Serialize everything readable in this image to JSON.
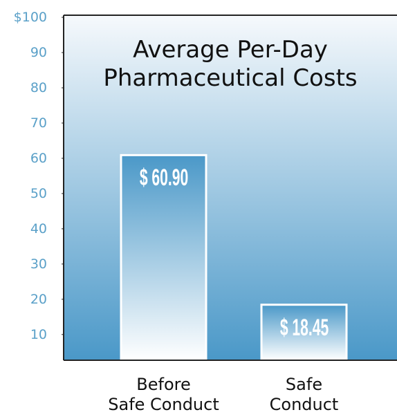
{
  "chart_data": {
    "type": "bar",
    "title": "Average Per-Day\nPharmaceutical Costs",
    "categories": [
      "Before\nSafe Conduct",
      "Safe\nConduct"
    ],
    "values": [
      60.9,
      18.45
    ],
    "value_labels": [
      "$ 60.90",
      "$ 18.45"
    ],
    "ylim": [
      2.7,
      100.6
    ],
    "yticks": [
      {
        "value": 100,
        "label": "$100"
      },
      90,
      80,
      70,
      60,
      50,
      40,
      30,
      20,
      10
    ],
    "color": "#4a98c8",
    "tick_color": "#5aa0c8"
  }
}
